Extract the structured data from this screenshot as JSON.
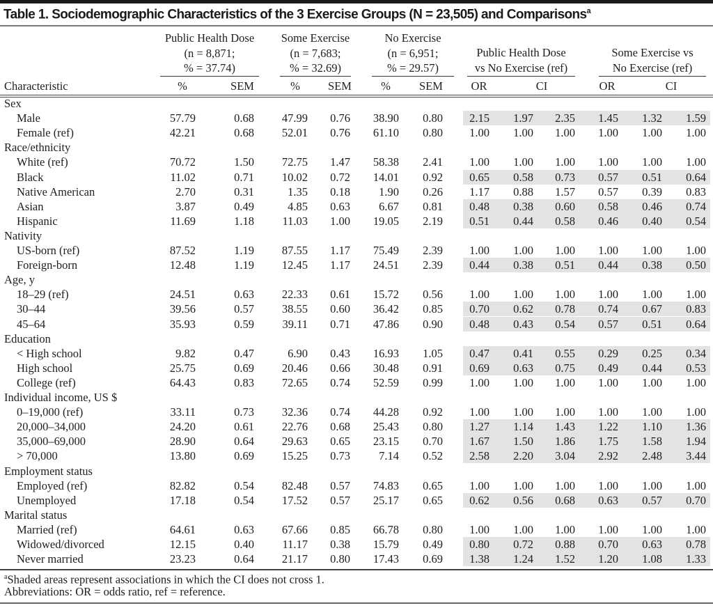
{
  "title": "Table 1. Sociodemographic Characteristics of the 3 Exercise Groups (N = 23,505) and Comparisons",
  "title_footnote_mark": "a",
  "groups": [
    {
      "lines": [
        "Public Health Dose",
        "(n = 8,871;",
        "% = 37.74)"
      ]
    },
    {
      "lines": [
        "Some Exercise",
        "(n = 7,683;",
        "% = 32.69)"
      ]
    },
    {
      "lines": [
        "No Exercise",
        "(n = 6,951;",
        "% = 29.57)"
      ]
    },
    {
      "lines": [
        "Public Health Dose",
        "vs No Exercise (ref)"
      ]
    },
    {
      "lines": [
        "Some Exercise vs",
        "No Exercise (ref)"
      ]
    }
  ],
  "column_headers": [
    "Characteristic",
    "%",
    "SEM",
    "%",
    "SEM",
    "%",
    "SEM",
    "OR",
    "CI",
    "OR",
    "CI"
  ],
  "shade_color": "#e3e3e3",
  "sections": [
    {
      "title": "Sex",
      "rows": [
        {
          "label": "Male",
          "values": [
            "57.79",
            "0.68",
            "47.99",
            "0.76",
            "38.90",
            "0.80"
          ],
          "or": [
            "2.15",
            "1.97",
            "2.35",
            "1.45",
            "1.32",
            "1.59"
          ],
          "shaded": true
        },
        {
          "label": "Female (ref)",
          "values": [
            "42.21",
            "0.68",
            "52.01",
            "0.76",
            "61.10",
            "0.80"
          ],
          "or": [
            "1.00",
            "1.00",
            "1.00",
            "1.00",
            "1.00",
            "1.00"
          ],
          "shaded": false
        }
      ]
    },
    {
      "title": "Race/ethnicity",
      "rows": [
        {
          "label": "White (ref)",
          "values": [
            "70.72",
            "1.50",
            "72.75",
            "1.47",
            "58.38",
            "2.41"
          ],
          "or": [
            "1.00",
            "1.00",
            "1.00",
            "1.00",
            "1.00",
            "1.00"
          ],
          "shaded": false
        },
        {
          "label": "Black",
          "values": [
            "11.02",
            "0.71",
            "10.02",
            "0.72",
            "14.01",
            "0.92"
          ],
          "or": [
            "0.65",
            "0.58",
            "0.73",
            "0.57",
            "0.51",
            "0.64"
          ],
          "shaded": true
        },
        {
          "label": "Native American",
          "values": [
            "2.70",
            "0.31",
            "1.35",
            "0.18",
            "1.90",
            "0.26"
          ],
          "or": [
            "1.17",
            "0.88",
            "1.57",
            "0.57",
            "0.39",
            "0.83"
          ],
          "shaded": false
        },
        {
          "label": "Asian",
          "values": [
            "3.87",
            "0.49",
            "4.85",
            "0.63",
            "6.67",
            "0.81"
          ],
          "or": [
            "0.48",
            "0.38",
            "0.60",
            "0.58",
            "0.46",
            "0.74"
          ],
          "shaded": true
        },
        {
          "label": "Hispanic",
          "values": [
            "11.69",
            "1.18",
            "11.03",
            "1.00",
            "19.05",
            "2.19"
          ],
          "or": [
            "0.51",
            "0.44",
            "0.58",
            "0.46",
            "0.40",
            "0.54"
          ],
          "shaded": true
        }
      ]
    },
    {
      "title": "Nativity",
      "rows": [
        {
          "label": "US-born (ref)",
          "values": [
            "87.52",
            "1.19",
            "87.55",
            "1.17",
            "75.49",
            "2.39"
          ],
          "or": [
            "1.00",
            "1.00",
            "1.00",
            "1.00",
            "1.00",
            "1.00"
          ],
          "shaded": false
        },
        {
          "label": "Foreign-born",
          "values": [
            "12.48",
            "1.19",
            "12.45",
            "1.17",
            "24.51",
            "2.39"
          ],
          "or": [
            "0.44",
            "0.38",
            "0.51",
            "0.44",
            "0.38",
            "0.50"
          ],
          "shaded": true
        }
      ]
    },
    {
      "title": "Age, y",
      "rows": [
        {
          "label": "18–29 (ref)",
          "values": [
            "24.51",
            "0.63",
            "22.33",
            "0.61",
            "15.72",
            "0.56"
          ],
          "or": [
            "1.00",
            "1.00",
            "1.00",
            "1.00",
            "1.00",
            "1.00"
          ],
          "shaded": false
        },
        {
          "label": "30–44",
          "values": [
            "39.56",
            "0.57",
            "38.55",
            "0.60",
            "36.42",
            "0.85"
          ],
          "or": [
            "0.70",
            "0.62",
            "0.78",
            "0.74",
            "0.67",
            "0.83"
          ],
          "shaded": true
        },
        {
          "label": "45–64",
          "values": [
            "35.93",
            "0.59",
            "39.11",
            "0.71",
            "47.86",
            "0.90"
          ],
          "or": [
            "0.48",
            "0.43",
            "0.54",
            "0.57",
            "0.51",
            "0.64"
          ],
          "shaded": true
        }
      ]
    },
    {
      "title": "Education",
      "rows": [
        {
          "label": "< High school",
          "values": [
            "9.82",
            "0.47",
            "6.90",
            "0.43",
            "16.93",
            "1.05"
          ],
          "or": [
            "0.47",
            "0.41",
            "0.55",
            "0.29",
            "0.25",
            "0.34"
          ],
          "shaded": true
        },
        {
          "label": "High school",
          "values": [
            "25.75",
            "0.69",
            "20.46",
            "0.66",
            "30.48",
            "0.91"
          ],
          "or": [
            "0.69",
            "0.63",
            "0.75",
            "0.49",
            "0.44",
            "0.53"
          ],
          "shaded": true
        },
        {
          "label": "College (ref)",
          "values": [
            "64.43",
            "0.83",
            "72.65",
            "0.74",
            "52.59",
            "0.99"
          ],
          "or": [
            "1.00",
            "1.00",
            "1.00",
            "1.00",
            "1.00",
            "1.00"
          ],
          "shaded": false
        }
      ]
    },
    {
      "title": "Individual income, US $",
      "rows": [
        {
          "label": "0–19,000 (ref)",
          "values": [
            "33.11",
            "0.73",
            "32.36",
            "0.74",
            "44.28",
            "0.92"
          ],
          "or": [
            "1.00",
            "1.00",
            "1.00",
            "1.00",
            "1.00",
            "1.00"
          ],
          "shaded": false
        },
        {
          "label": "20,000–34,000",
          "values": [
            "24.20",
            "0.61",
            "22.76",
            "0.68",
            "25.43",
            "0.80"
          ],
          "or": [
            "1.27",
            "1.14",
            "1.43",
            "1.22",
            "1.10",
            "1.36"
          ],
          "shaded": true
        },
        {
          "label": "35,000–69,000",
          "values": [
            "28.90",
            "0.64",
            "29.63",
            "0.65",
            "23.15",
            "0.70"
          ],
          "or": [
            "1.67",
            "1.50",
            "1.86",
            "1.75",
            "1.58",
            "1.94"
          ],
          "shaded": true
        },
        {
          "label": "> 70,000",
          "values": [
            "13.80",
            "0.69",
            "15.25",
            "0.73",
            "7.14",
            "0.52"
          ],
          "or": [
            "2.58",
            "2.20",
            "3.04",
            "2.92",
            "2.48",
            "3.44"
          ],
          "shaded": true
        }
      ]
    },
    {
      "title": "Employment status",
      "rows": [
        {
          "label": "Employed (ref)",
          "values": [
            "82.82",
            "0.54",
            "82.48",
            "0.57",
            "74.83",
            "0.65"
          ],
          "or": [
            "1.00",
            "1.00",
            "1.00",
            "1.00",
            "1.00",
            "1.00"
          ],
          "shaded": false
        },
        {
          "label": "Unemployed",
          "values": [
            "17.18",
            "0.54",
            "17.52",
            "0.57",
            "25.17",
            "0.65"
          ],
          "or": [
            "0.62",
            "0.56",
            "0.68",
            "0.63",
            "0.57",
            "0.70"
          ],
          "shaded": true
        }
      ]
    },
    {
      "title": "Marital status",
      "rows": [
        {
          "label": "Married (ref)",
          "values": [
            "64.61",
            "0.63",
            "67.66",
            "0.85",
            "66.78",
            "0.80"
          ],
          "or": [
            "1.00",
            "1.00",
            "1.00",
            "1.00",
            "1.00",
            "1.00"
          ],
          "shaded": false
        },
        {
          "label": "Widowed/divorced",
          "values": [
            "12.15",
            "0.40",
            "11.17",
            "0.38",
            "15.79",
            "0.49"
          ],
          "or": [
            "0.80",
            "0.72",
            "0.88",
            "0.70",
            "0.63",
            "0.78"
          ],
          "shaded": true
        },
        {
          "label": "Never married",
          "values": [
            "23.23",
            "0.64",
            "21.17",
            "0.80",
            "17.43",
            "0.69"
          ],
          "or": [
            "1.38",
            "1.24",
            "1.52",
            "1.20",
            "1.08",
            "1.33"
          ],
          "shaded": true
        }
      ]
    }
  ],
  "footnotes": {
    "a_mark": "a",
    "a_text": "Shaded areas represent associations in which the CI does not cross 1.",
    "abbreviations": "Abbreviations: OR = odds ratio, ref = reference."
  }
}
